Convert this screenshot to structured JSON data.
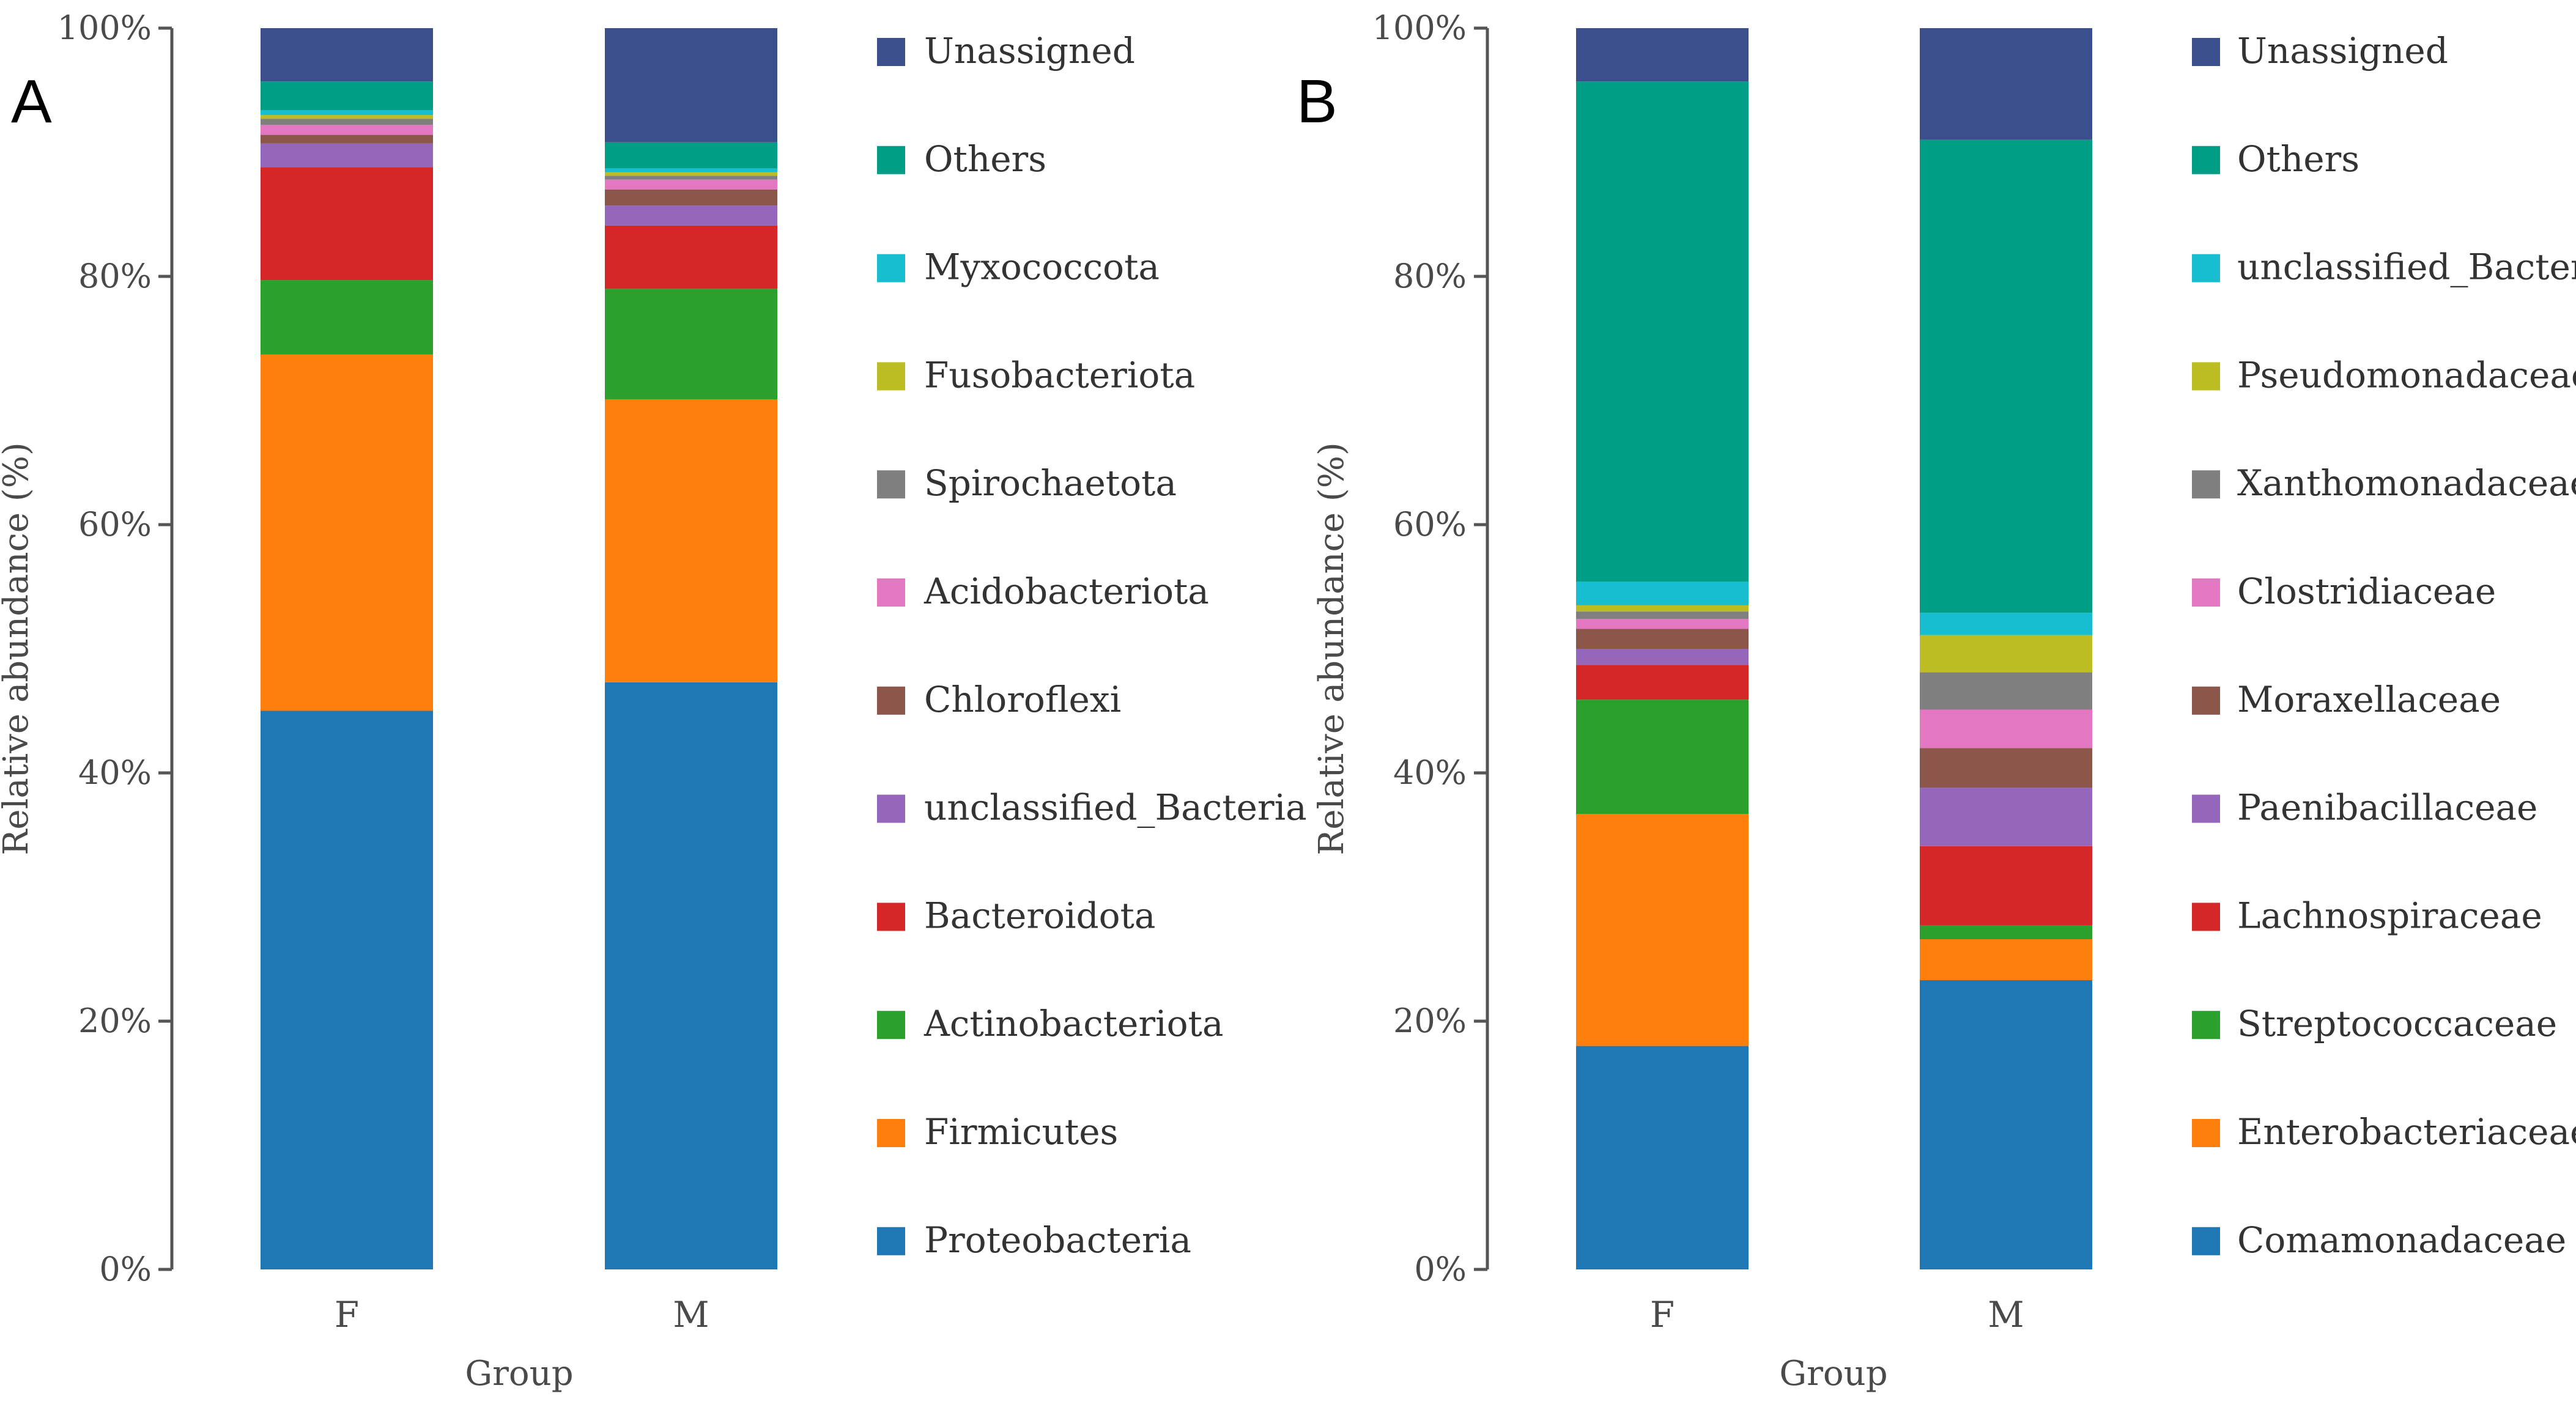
{
  "chart_data": [
    {
      "type": "bar",
      "stacked": true,
      "panel_label": "A",
      "xlabel": "Group",
      "ylabel": "Relative abundance (%)",
      "ylim": [
        0,
        100
      ],
      "yticks": [
        "0%",
        "20%",
        "40%",
        "60%",
        "80%",
        "100%"
      ],
      "categories": [
        "F",
        "M"
      ],
      "legend_position": "right",
      "series": [
        {
          "name": "Proteobacteria",
          "color": "#1f77b4",
          "values": [
            45.0,
            47.3
          ]
        },
        {
          "name": "Firmicutes",
          "color": "#ff7f0e",
          "values": [
            28.7,
            22.8
          ]
        },
        {
          "name": "Actinobacteriota",
          "color": "#2ca02c",
          "values": [
            6.0,
            8.9
          ]
        },
        {
          "name": "Bacteroidota",
          "color": "#d62728",
          "values": [
            9.1,
            5.1
          ]
        },
        {
          "name": "unclassified_Bacteria",
          "color": "#9467bd",
          "values": [
            1.9,
            1.6
          ]
        },
        {
          "name": "Chloroflexi",
          "color": "#8c564b",
          "values": [
            0.7,
            1.3
          ]
        },
        {
          "name": "Acidobacteriota",
          "color": "#e377c2",
          "values": [
            0.8,
            0.8
          ]
        },
        {
          "name": "Spirochaetota",
          "color": "#7f7f7f",
          "values": [
            0.5,
            0.3
          ]
        },
        {
          "name": "Fusobacteriota",
          "color": "#bcbd22",
          "values": [
            0.3,
            0.3
          ]
        },
        {
          "name": "Myxococcota",
          "color": "#17becf",
          "values": [
            0.4,
            0.3
          ]
        },
        {
          "name": "Others",
          "color": "#009e84",
          "values": [
            2.3,
            2.1
          ]
        },
        {
          "name": "Unassigned",
          "color": "#3b4f8c",
          "values": [
            4.3,
            9.2
          ]
        }
      ]
    },
    {
      "type": "bar",
      "stacked": true,
      "panel_label": "B",
      "xlabel": "Group",
      "ylabel": "Relative abundance (%)",
      "ylim": [
        0,
        100
      ],
      "yticks": [
        "0%",
        "20%",
        "40%",
        "60%",
        "80%",
        "100%"
      ],
      "categories": [
        "F",
        "M"
      ],
      "legend_position": "right",
      "series": [
        {
          "name": "Comamonadaceae",
          "color": "#1f77b4",
          "values": [
            18.0,
            23.3
          ]
        },
        {
          "name": "Enterobacteriaceae",
          "color": "#ff7f0e",
          "values": [
            18.7,
            3.3
          ]
        },
        {
          "name": "Streptococcaceae",
          "color": "#2ca02c",
          "values": [
            9.2,
            1.1
          ]
        },
        {
          "name": "Lachnospiraceae",
          "color": "#d62728",
          "values": [
            2.8,
            6.4
          ]
        },
        {
          "name": "Paenibacillaceae",
          "color": "#9467bd",
          "values": [
            1.3,
            4.7
          ]
        },
        {
          "name": "Moraxellaceae",
          "color": "#8c564b",
          "values": [
            1.6,
            3.2
          ]
        },
        {
          "name": "Clostridiaceae",
          "color": "#e377c2",
          "values": [
            0.8,
            3.1
          ]
        },
        {
          "name": "Xanthomonadaceae",
          "color": "#7f7f7f",
          "values": [
            0.6,
            3.0
          ]
        },
        {
          "name": "Pseudomonadaceae",
          "color": "#bcbd22",
          "values": [
            0.5,
            3.0
          ]
        },
        {
          "name": "unclassified_Bacteria",
          "color": "#17becf",
          "values": [
            1.9,
            1.8
          ]
        },
        {
          "name": "Others",
          "color": "#009e84",
          "values": [
            40.3,
            38.1
          ]
        },
        {
          "name": "Unassigned",
          "color": "#3b4f8c",
          "values": [
            4.3,
            9.0
          ]
        }
      ]
    }
  ]
}
